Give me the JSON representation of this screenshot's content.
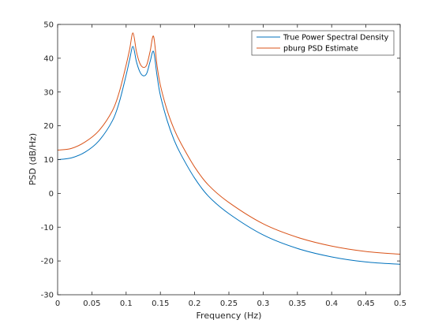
{
  "chart_data": {
    "type": "line",
    "title": "",
    "xlabel": "Frequency (Hz)",
    "ylabel": "PSD (dB/Hz)",
    "xlim": [
      0,
      0.5
    ],
    "ylim": [
      -30,
      50
    ],
    "x_ticks": [
      0,
      0.05,
      0.1,
      0.15,
      0.2,
      0.25,
      0.3,
      0.35,
      0.4,
      0.45,
      0.5
    ],
    "x_tick_labels": [
      "0",
      "0.05",
      "0.1",
      "0.15",
      "0.2",
      "0.25",
      "0.3",
      "0.35",
      "0.4",
      "0.45",
      "0.5"
    ],
    "y_ticks": [
      -30,
      -20,
      -10,
      0,
      10,
      20,
      30,
      40,
      50
    ],
    "y_tick_labels": [
      "-30",
      "-20",
      "-10",
      "0",
      "10",
      "20",
      "30",
      "40",
      "50"
    ],
    "grid": false,
    "box": true,
    "legend_position": "top-right",
    "x": [
      0,
      0.02,
      0.04,
      0.06,
      0.08,
      0.09,
      0.1,
      0.105,
      0.11,
      0.115,
      0.12,
      0.125,
      0.13,
      0.135,
      0.14,
      0.145,
      0.15,
      0.16,
      0.17,
      0.18,
      0.2,
      0.22,
      0.25,
      0.3,
      0.35,
      0.4,
      0.45,
      0.5
    ],
    "series": [
      {
        "name": "True Power Spectral Density",
        "color": "#0072BD",
        "values": [
          10,
          10.5,
          12.2,
          15.5,
          21.5,
          27,
          35,
          39.5,
          43.5,
          39,
          36,
          34.8,
          35.5,
          39,
          42,
          35,
          29,
          21.5,
          15.8,
          11.5,
          4.5,
          -0.8,
          -6,
          -12.3,
          -16.3,
          -18.8,
          -20.3,
          -21
        ]
      },
      {
        "name": "pburg PSD Estimate",
        "color": "#D95319",
        "values": [
          12.8,
          13.3,
          15.2,
          18.5,
          24.5,
          30,
          38,
          42.5,
          47.5,
          42,
          38.5,
          37.3,
          38,
          42,
          46.5,
          38,
          32,
          24.5,
          19,
          14.8,
          7.8,
          2.5,
          -2.7,
          -9,
          -13,
          -15.6,
          -17.2,
          -18
        ]
      }
    ]
  }
}
